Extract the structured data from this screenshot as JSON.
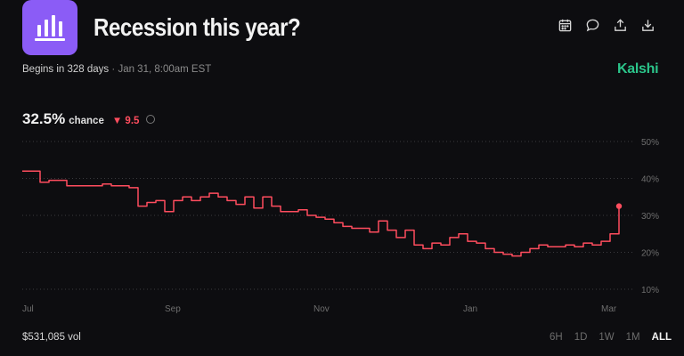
{
  "market": {
    "title": "Recession this year?",
    "begins": "Begins in 328 days",
    "separator": "·",
    "date": "Jan 31, 8:00am EST",
    "brand": "Kalshi"
  },
  "stats": {
    "percent": "32.5%",
    "chance_label": "chance",
    "delta": "▼ 9.5",
    "volume": "$531,085 vol"
  },
  "header_icons": [
    "calendar-icon",
    "comment-icon",
    "share-icon",
    "download-icon"
  ],
  "time_ranges": [
    "6H",
    "1D",
    "1W",
    "1M",
    "ALL"
  ],
  "active_range": "ALL",
  "colors": {
    "line": "#ff4d5e",
    "brand": "#2bc48a",
    "logo_bg": "#8b5cf6",
    "background": "#0d0d10"
  },
  "chart_data": {
    "type": "line",
    "y_unit": "%",
    "ylim": [
      10,
      50
    ],
    "y_ticks": [
      "50%",
      "40%",
      "30%",
      "20%",
      "10%"
    ],
    "x_ticks": [
      "Jul",
      "Sep",
      "Nov",
      "Jan",
      "Mar"
    ],
    "grid": true,
    "series": [
      {
        "values": [
          42,
          42,
          39,
          39.5,
          39.5,
          38,
          38,
          38,
          38,
          38.5,
          38,
          38,
          37.5,
          32.5,
          33.5,
          34,
          31,
          34,
          35,
          34,
          35,
          36,
          35,
          34,
          33,
          35,
          32,
          35,
          32.5,
          31,
          31,
          31.5,
          30,
          29.5,
          29,
          28,
          27,
          26.5,
          26.5,
          25.5,
          28.5,
          26,
          24,
          26,
          22,
          21,
          22.5,
          22,
          24,
          25,
          23,
          22.5,
          21,
          20,
          19.5,
          19,
          20,
          21,
          22,
          21.5,
          21.5,
          22,
          21.5,
          22.5,
          22,
          23,
          25,
          32.5
        ]
      }
    ]
  }
}
